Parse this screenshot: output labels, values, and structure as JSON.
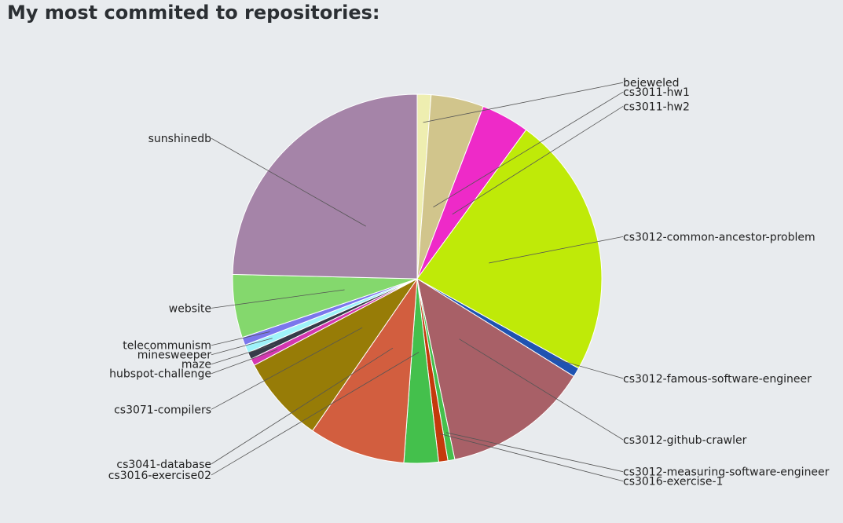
{
  "title": "My most commited to repositories:",
  "chart_data": {
    "type": "pie",
    "title": "My most commited to repositories:",
    "start_angle_deg": 0,
    "direction": "clockwise",
    "slices": [
      {
        "label": "bejeweled",
        "value": 1.2,
        "color": "#eeeeb0",
        "side": "right"
      },
      {
        "label": "cs3011-hw1",
        "value": 4.6,
        "color": "#d1c58c",
        "side": "right"
      },
      {
        "label": "cs3011-hw2",
        "value": 4.2,
        "color": "#ee2ac8",
        "side": "right"
      },
      {
        "label": "cs3012-common-ancestor-problem",
        "value": 22.9,
        "color": "#bfea08",
        "side": "right"
      },
      {
        "label": "cs3012-famous-software-engineer",
        "value": 0.8,
        "color": "#1f53b1",
        "side": "right"
      },
      {
        "label": "cs3012-github-crawler",
        "value": 12.8,
        "color": "#a86067",
        "side": "right"
      },
      {
        "label": "cs3012-measuring-software-engineer",
        "value": 0.6,
        "color": "#44c04c",
        "side": "right"
      },
      {
        "label": "cs3016-exercise-1",
        "value": 0.8,
        "color": "#c43a0c",
        "side": "right"
      },
      {
        "label": "cs3016-exercise02",
        "value": 3.0,
        "color": "#44c04c",
        "side": "left"
      },
      {
        "label": "cs3041-database",
        "value": 8.4,
        "color": "#d25e3f",
        "side": "left"
      },
      {
        "label": "cs3071-compilers",
        "value": 7.6,
        "color": "#977c07",
        "side": "left"
      },
      {
        "label": "hubspot-challenge",
        "value": 0.6,
        "color": "#d437b0",
        "side": "left"
      },
      {
        "label": "maze",
        "value": 0.6,
        "color": "#363b49",
        "side": "left"
      },
      {
        "label": "minesweeper",
        "value": 0.7,
        "color": "#9ff3f9",
        "side": "left"
      },
      {
        "label": "telecommunism",
        "value": 0.7,
        "color": "#7b77ec",
        "side": "left"
      },
      {
        "label": "website",
        "value": 5.5,
        "color": "#84d86d",
        "side": "left"
      },
      {
        "label": "sunshinedb",
        "value": 24.5,
        "color": "#a584a8",
        "side": "left"
      }
    ]
  }
}
